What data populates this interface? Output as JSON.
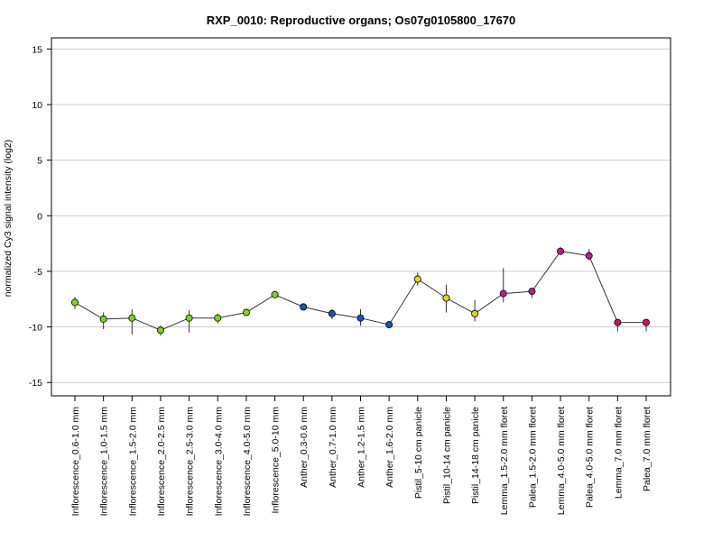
{
  "chart_data": {
    "type": "line",
    "title": "RXP_0010: Reproductive organs; Os07g0105800_17670",
    "ylabel": "normalized Cy3 signal intensity (log2)",
    "xlabel": "",
    "ylim": [
      -16.2,
      16
    ],
    "yticks": [
      15,
      10,
      5,
      0,
      -5,
      -10,
      -15
    ],
    "grid": "horizontal",
    "categories": [
      "Inflorescence_0.6-1.0 mm",
      "Inflorescence_1.0-1.5 mm",
      "Inflorescence_1.5-2.0 mm",
      "Inflorescence_2.0-2.5 mm",
      "Inflorescence_2.5-3.0 mm",
      "Inflorescence_3.0-4.0 mm",
      "Inflorescence_4.0-5.0 mm",
      "Inflorescence_5.0-10 mm",
      "Anther_0.3-0.6 mm",
      "Anther_0.7-1.0 mm",
      "Anther_1.2-1.5 mm",
      "Anther_1.6-2.0 mm",
      "Pistil_5-10 cm panicle",
      "Pistil_10-14 cm panicle",
      "Pistil_14-18 cm panicle",
      "Lemma_1.5-2.0 mm floret",
      "Palea_1.5-2.0 mm floret",
      "Lemma_4.0-5.0 mm floret",
      "Palea_4.0-5.0 mm floret",
      "Lemma_7.0 mm floret",
      "Palea_7.0 mm floret"
    ],
    "values": [
      -7.8,
      -9.3,
      -9.2,
      -10.3,
      -9.2,
      -9.2,
      -8.7,
      -7.1,
      -8.2,
      -8.8,
      -9.2,
      -9.8,
      -5.7,
      -7.4,
      -8.8,
      -7.0,
      -6.8,
      -3.2,
      -3.6,
      -9.6,
      -9.6
    ],
    "error_low": [
      -8.4,
      -10.2,
      -10.7,
      -10.8,
      -10.5,
      -9.7,
      -8.9,
      -7.3,
      -8.4,
      -9.3,
      -9.9,
      -9.9,
      -6.3,
      -8.7,
      -9.5,
      -7.8,
      -7.4,
      -3.5,
      -4.0,
      -10.4,
      -10.4
    ],
    "error_high": [
      -7.3,
      -8.7,
      -8.4,
      -9.9,
      -8.5,
      -8.8,
      -8.5,
      -6.9,
      -8.0,
      -8.4,
      -8.4,
      -9.7,
      -5.1,
      -6.2,
      -7.6,
      -4.7,
      -6.5,
      -2.8,
      -3.0,
      -9.4,
      -9.4
    ],
    "point_colors": [
      "#7ed321",
      "#7ed321",
      "#7ed321",
      "#7ed321",
      "#7ed321",
      "#7ed321",
      "#7ed321",
      "#7ed321",
      "#1f4fbf",
      "#1f4fbf",
      "#1f4fbf",
      "#1f4fbf",
      "#e6d21e",
      "#e6d21e",
      "#e6d21e",
      "#c4198f",
      "#c4198f",
      "#c4198f",
      "#c4198f",
      "#c8155a",
      "#c8155a"
    ],
    "line_color": "#333333",
    "grid_color": "#cccccc"
  }
}
